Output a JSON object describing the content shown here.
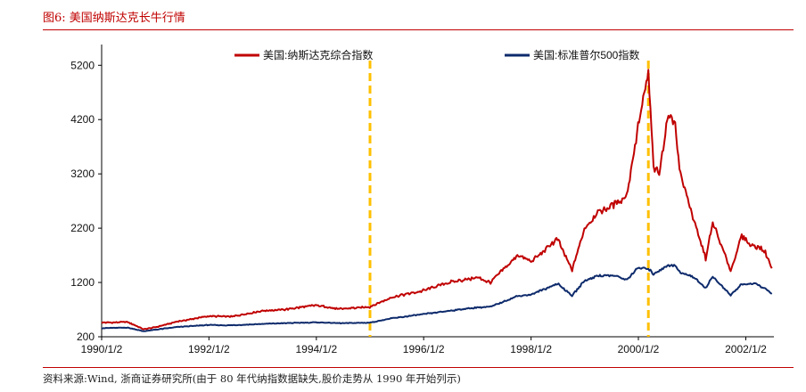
{
  "figure": {
    "title": "图6:   美国纳斯达克长牛行情",
    "source": "资料来源:Wind, 浙商证券研究所(由于 80 年代纳指数据缺失,股价走势从 1990 年开始列示)"
  },
  "colors": {
    "nasdaq": "#c00000",
    "sp500": "#0d2a6b",
    "marker": "#ffc000",
    "rule": "#c00000"
  },
  "chart_data": {
    "type": "line",
    "title": "",
    "xlabel": "",
    "ylabel": "",
    "ylim": [
      200,
      5500
    ],
    "xlim": [
      "1990-01-02",
      "2002-06-30"
    ],
    "yticks": [
      "200",
      "1200",
      "2200",
      "3200",
      "4200",
      "5200"
    ],
    "xticks": [
      "1990/1/2",
      "1992/1/2",
      "1994/1/2",
      "1996/1/2",
      "1998/1/2",
      "2000/1/2",
      "2002/1/2"
    ],
    "grid": false,
    "legend": "top",
    "vlines": [
      "1995-01-02",
      "2000-03-10"
    ],
    "series": [
      {
        "name": "美国:纳斯达克综合指数",
        "color": "#c00000",
        "points": [
          [
            "1990-01-02",
            460
          ],
          [
            "1990-07-01",
            470
          ],
          [
            "1990-10-15",
            335
          ],
          [
            "1991-01-02",
            375
          ],
          [
            "1991-06-01",
            480
          ],
          [
            "1991-12-31",
            580
          ],
          [
            "1992-06-01",
            570
          ],
          [
            "1992-12-31",
            680
          ],
          [
            "1993-06-01",
            700
          ],
          [
            "1993-12-31",
            780
          ],
          [
            "1994-06-01",
            710
          ],
          [
            "1994-12-31",
            750
          ],
          [
            "1995-06-01",
            930
          ],
          [
            "1995-12-31",
            1050
          ],
          [
            "1996-06-01",
            1190
          ],
          [
            "1996-12-31",
            1290
          ],
          [
            "1997-04-01",
            1200
          ],
          [
            "1997-10-01",
            1700
          ],
          [
            "1998-01-02",
            1580
          ],
          [
            "1998-07-01",
            2000
          ],
          [
            "1998-10-08",
            1420
          ],
          [
            "1998-12-31",
            2190
          ],
          [
            "1999-04-01",
            2500
          ],
          [
            "1999-08-01",
            2650
          ],
          [
            "1999-10-15",
            2800
          ],
          [
            "1999-12-31",
            4070
          ],
          [
            "2000-03-10",
            5050
          ],
          [
            "2000-04-14",
            3320
          ],
          [
            "2000-05-23",
            3200
          ],
          [
            "2000-07-17",
            4250
          ],
          [
            "2000-09-01",
            4230
          ],
          [
            "2000-10-15",
            3200
          ],
          [
            "2000-12-31",
            2470
          ],
          [
            "2001-04-04",
            1640
          ],
          [
            "2001-05-22",
            2300
          ],
          [
            "2001-09-21",
            1420
          ],
          [
            "2001-12-05",
            2050
          ],
          [
            "2002-02-01",
            1900
          ],
          [
            "2002-04-01",
            1850
          ],
          [
            "2002-05-15",
            1750
          ],
          [
            "2002-06-28",
            1460
          ]
        ]
      },
      {
        "name": "美国:标准普尔500指数",
        "color": "#0d2a6b",
        "points": [
          [
            "1990-01-02",
            359
          ],
          [
            "1990-07-01",
            368
          ],
          [
            "1990-10-15",
            300
          ],
          [
            "1991-01-02",
            330
          ],
          [
            "1991-06-01",
            380
          ],
          [
            "1991-12-31",
            417
          ],
          [
            "1992-06-01",
            410
          ],
          [
            "1992-12-31",
            436
          ],
          [
            "1993-06-01",
            450
          ],
          [
            "1993-12-31",
            466
          ],
          [
            "1994-06-01",
            450
          ],
          [
            "1994-12-31",
            459
          ],
          [
            "1995-06-01",
            540
          ],
          [
            "1995-12-31",
            615
          ],
          [
            "1996-06-01",
            670
          ],
          [
            "1996-12-31",
            740
          ],
          [
            "1997-04-01",
            750
          ],
          [
            "1997-10-01",
            950
          ],
          [
            "1998-01-02",
            975
          ],
          [
            "1998-07-01",
            1180
          ],
          [
            "1998-10-08",
            960
          ],
          [
            "1998-12-31",
            1229
          ],
          [
            "1999-04-01",
            1330
          ],
          [
            "1999-08-01",
            1320
          ],
          [
            "1999-10-15",
            1250
          ],
          [
            "1999-12-31",
            1469
          ],
          [
            "2000-03-10",
            1450
          ],
          [
            "2000-04-14",
            1360
          ],
          [
            "2000-07-17",
            1510
          ],
          [
            "2000-09-01",
            1520
          ],
          [
            "2000-10-15",
            1380
          ],
          [
            "2000-12-31",
            1320
          ],
          [
            "2001-04-04",
            1100
          ],
          [
            "2001-05-22",
            1310
          ],
          [
            "2001-09-21",
            965
          ],
          [
            "2001-12-05",
            1170
          ],
          [
            "2002-03-19",
            1170
          ],
          [
            "2002-05-15",
            1080
          ],
          [
            "2002-06-28",
            990
          ]
        ]
      }
    ]
  }
}
